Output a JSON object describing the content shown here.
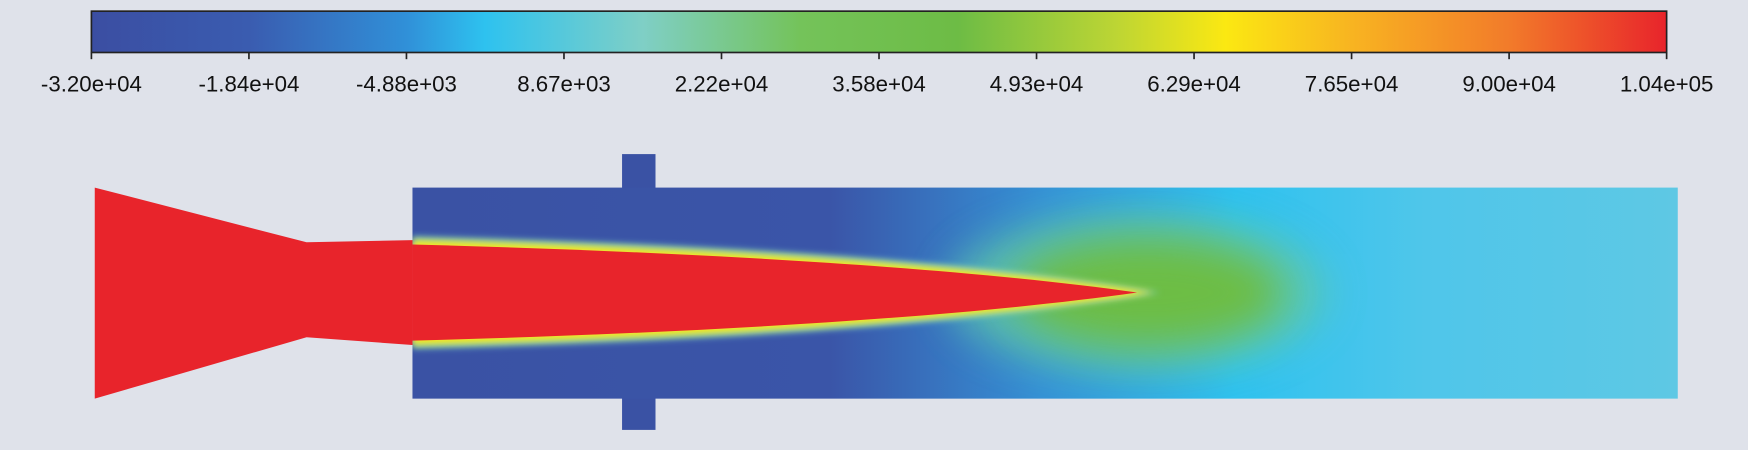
{
  "colorbar": {
    "ticks": [
      "-3.20e+04",
      "-1.84e+04",
      "-4.88e+03",
      "8.67e+03",
      "2.22e+04",
      "3.58e+04",
      "4.93e+04",
      "6.29e+04",
      "7.65e+04",
      "9.00e+04",
      "1.04e+05"
    ]
  }
}
